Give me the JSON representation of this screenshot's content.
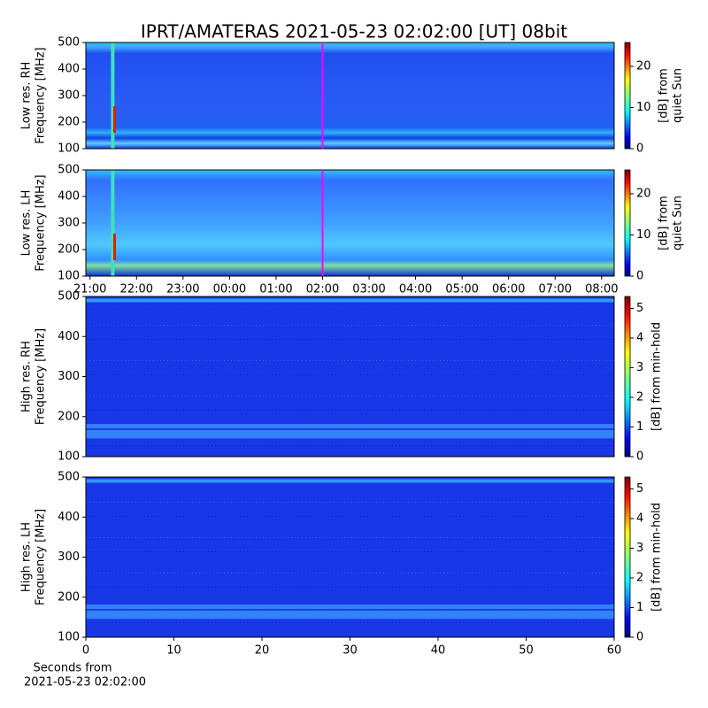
{
  "chart_data": [
    {
      "type": "heatmap",
      "title": "IPRT/AMATERAS 2021-05-23 02:02:00 [UT]   08bit",
      "ylabel": [
        "Low res. RH",
        "Frequency [MHz]"
      ],
      "ylim": [
        100,
        500
      ],
      "yticks": [
        100,
        200,
        300,
        400,
        500
      ],
      "xlim": [
        -0.09,
        11.27
      ],
      "cursor": {
        "x": 5,
        "color": "#ff00ff"
      },
      "colorbar": {
        "label": [
          "[dB] from",
          "quiet Sun"
        ],
        "lim": [
          0,
          25.8
        ],
        "ticks": [
          0,
          10,
          20
        ]
      }
    },
    {
      "type": "heatmap",
      "ylabel": [
        "Low res. LH",
        "Frequency [MHz]"
      ],
      "ylim": [
        100,
        500
      ],
      "yticks": [
        100,
        200,
        300,
        400,
        500
      ],
      "xlim": [
        -0.09,
        11.27
      ],
      "xticks": [
        {
          "value": 0,
          "label": "21:00"
        },
        {
          "value": 1,
          "label": "22:00"
        },
        {
          "value": 2,
          "label": "23:00"
        },
        {
          "value": 3,
          "label": "00:00"
        },
        {
          "value": 4,
          "label": "01:00"
        },
        {
          "value": 5,
          "label": "02:00"
        },
        {
          "value": 6,
          "label": "03:00"
        },
        {
          "value": 7,
          "label": "04:00"
        },
        {
          "value": 8,
          "label": "05:00"
        },
        {
          "value": 9,
          "label": "06:00"
        },
        {
          "value": 10,
          "label": "07:00"
        },
        {
          "value": 11,
          "label": "08:00"
        }
      ],
      "cursor": {
        "x": 5,
        "color": "#ff00ff"
      },
      "colorbar": {
        "label": [
          "[dB] from",
          "quiet Sun"
        ],
        "lim": [
          0,
          25.8
        ],
        "ticks": [
          0,
          10,
          20
        ]
      }
    },
    {
      "type": "heatmap",
      "ylabel": [
        "High res. RH",
        "Frequency [MHz]"
      ],
      "ylim": [
        100,
        500
      ],
      "yticks": [
        100,
        200,
        300,
        400,
        500
      ],
      "xlim": [
        0,
        60
      ],
      "colorbar": {
        "label": [
          "[dB] from min-hold"
        ],
        "lim": [
          0,
          5.4
        ],
        "ticks": [
          0,
          1,
          2,
          3,
          4,
          5
        ]
      }
    },
    {
      "type": "heatmap",
      "ylabel": [
        "High res. LH",
        "Frequency [MHz]"
      ],
      "ylim": [
        100,
        500
      ],
      "yticks": [
        100,
        200,
        300,
        400,
        500
      ],
      "xlim": [
        0,
        60
      ],
      "xticks": [
        0,
        10,
        20,
        30,
        40,
        50,
        60
      ],
      "xlabel": [
        "Seconds from",
        "2021-05-23 02:02:00"
      ],
      "colorbar": {
        "label": [
          "[dB] from min-hold"
        ],
        "lim": [
          0,
          5.4
        ],
        "ticks": [
          0,
          1,
          2,
          3,
          4,
          5
        ]
      }
    }
  ]
}
